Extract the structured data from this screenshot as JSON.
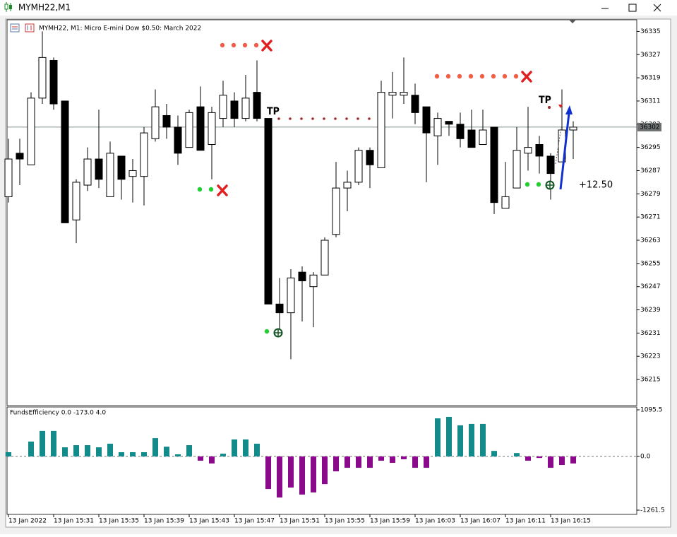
{
  "window": {
    "title": "MYMH22,M1"
  },
  "chart_data": [
    {
      "type": "candlestick",
      "title": "MYMH22, M1: Micro E-mini Dow $0.50: March 2022",
      "categories": [
        "13 Jan 2022",
        null,
        null,
        null,
        "13 Jan 15:31",
        null,
        null,
        null,
        "13 Jan 15:35",
        null,
        null,
        null,
        "13 Jan 15:39",
        null,
        null,
        null,
        "13 Jan 15:43",
        null,
        null,
        null,
        "13 Jan 15:47",
        null,
        null,
        null,
        "13 Jan 15:51",
        null,
        null,
        null,
        "13 Jan 15:55",
        null,
        null,
        null,
        "13 Jan 15:59",
        null,
        null,
        null,
        "13 Jan 16:03",
        null,
        null,
        null,
        "13 Jan 16:07",
        null,
        null,
        null,
        "13 Jan 16:11",
        null,
        null,
        null,
        "13 Jan 16:15",
        null,
        null
      ],
      "open": [
        36278,
        36293,
        36289,
        36312,
        36325,
        36311,
        36270,
        36282,
        36291,
        36278,
        36292,
        36285,
        36285,
        36298,
        36306,
        36302,
        36295,
        36309,
        36296,
        36305,
        36311,
        36305,
        36314,
        36305,
        36241,
        36238,
        36252,
        36247,
        36251,
        36265,
        36281,
        36283,
        36294,
        36288,
        36313,
        36313,
        36313,
        36309,
        36299,
        36304,
        36303,
        36301,
        36296,
        36302,
        36274,
        36281,
        36293,
        36296,
        36292,
        36290,
        36301
      ],
      "high": [
        36298,
        36298,
        36314,
        36335,
        36326,
        36311,
        36284,
        36295,
        36308,
        36297,
        36292,
        36291,
        36302,
        36315,
        36310,
        36306,
        36308,
        36316,
        36309,
        36318,
        36314,
        36320,
        36325,
        36305,
        36250,
        36253,
        36254,
        36252,
        36264,
        36290,
        36287,
        36295,
        36295,
        36318,
        36321,
        36326,
        36317,
        36309,
        36307,
        36304,
        36307,
        36308,
        36308,
        36302,
        36290,
        36302,
        36309,
        36299,
        36293,
        36315,
        36304
      ],
      "low": [
        36276,
        36282,
        36289,
        36310,
        36308,
        36269,
        36262,
        36280,
        36281,
        36278,
        36277,
        36276,
        36275,
        36297,
        36298,
        36289,
        36295,
        36294,
        36284,
        36302,
        36302,
        36304,
        36304,
        36241,
        36231,
        36222,
        36235,
        36233,
        36251,
        36264,
        36273,
        36282,
        36281,
        36288,
        36305,
        36310,
        36303,
        36283,
        36289,
        36299,
        36295,
        36295,
        36296,
        36272,
        36274,
        36281,
        36287,
        36286,
        36277,
        36290,
        36291
      ],
      "close": [
        36291,
        36291,
        36312,
        36326,
        36310,
        36269,
        36283,
        36291,
        36284,
        36293,
        36284,
        36287,
        36300,
        36309,
        36302,
        36293,
        36307,
        36294,
        36307,
        36313,
        36305,
        36312,
        36305,
        36241,
        36238,
        36250,
        36249,
        36251,
        36263,
        36281,
        36283,
        36294,
        36289,
        36314,
        36314,
        36314,
        36307,
        36300,
        36305,
        36303,
        36298,
        36295,
        36301,
        36276,
        36278,
        36294,
        36295,
        36292,
        36286,
        36301,
        36302
      ],
      "up_color": "#ffffff",
      "down_color": "#000000",
      "ylim": [
        36206,
        36339
      ],
      "yticks": [
        36215,
        36223,
        36231,
        36239,
        36247,
        36255,
        36263,
        36271,
        36279,
        36287,
        36295,
        36303,
        36311,
        36319,
        36327,
        36335
      ],
      "last_price": 36302,
      "annotations": [
        "TP",
        "TP",
        "+12.50"
      ]
    },
    {
      "type": "bar",
      "title": "FundsEfficiency 0.0 -173.0 4.0",
      "values": [
        100,
        0,
        350,
        600,
        600,
        215,
        265,
        265,
        215,
        300,
        100,
        100,
        100,
        430,
        230,
        50,
        265,
        -100,
        -165,
        65,
        400,
        400,
        300,
        -765,
        -965,
        -730,
        -895,
        -845,
        -650,
        -350,
        -265,
        -265,
        -265,
        -100,
        -150,
        -65,
        -265,
        -265,
        895,
        930,
        730,
        765,
        765,
        130,
        0,
        80,
        -100,
        -35,
        -265,
        -200,
        -165
      ],
      "positive_color": "#138b8b",
      "negative_color": "#8b0a8b",
      "ylim": [
        -1361,
        1162
      ],
      "yticks": [
        1095.5,
        {
          "value": 0,
          "label": "0.0"
        },
        -1261.5
      ]
    }
  ]
}
